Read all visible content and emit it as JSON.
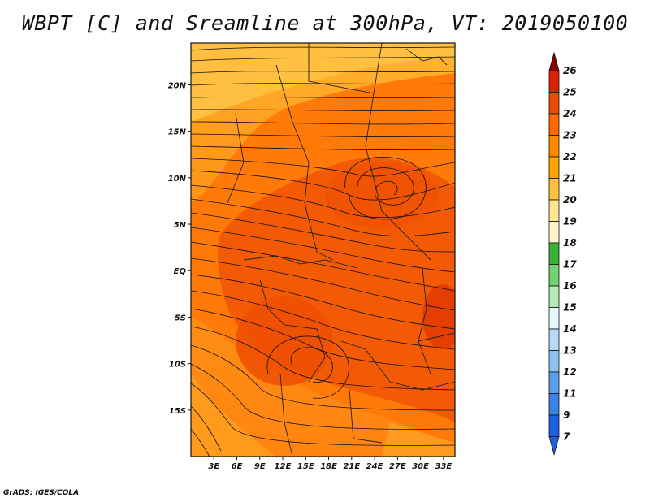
{
  "title": "WBPT [C] and Sreamline at 300hPa, VT: 2019050100",
  "credit": "GrADS: IGES/COLA",
  "map": {
    "lon_labels": [
      "3E",
      "6E",
      "9E",
      "12E",
      "15E",
      "18E",
      "21E",
      "24E",
      "27E",
      "30E",
      "33E"
    ],
    "lat_labels": [
      "20N",
      "15N",
      "10N",
      "5N",
      "EQ",
      "5S",
      "10S",
      "15S"
    ],
    "lon_range": [
      0,
      34.5
    ],
    "lat_range": [
      -20,
      24.5
    ]
  },
  "colorbar": {
    "labels": [
      "26",
      "25",
      "24",
      "23",
      "22",
      "21",
      "20",
      "19",
      "18",
      "17",
      "16",
      "15",
      "14",
      "13",
      "12",
      "11",
      "9",
      "7"
    ],
    "colors": [
      "#c00000",
      "#dc2000",
      "#ef4a00",
      "#ff6a00",
      "#ff8a00",
      "#ffa500",
      "#ffc33a",
      "#ffe590",
      "#fdf7c7",
      "#36b336",
      "#6fd46f",
      "#b4eab4",
      "#e7f6fb",
      "#b6daf7",
      "#8dc1f0",
      "#5aa0ec",
      "#3a82e6",
      "#1a60e0"
    ],
    "top_arrow_color": "#8b0000",
    "bottom_arrow_color": "#1f5fd9"
  }
}
